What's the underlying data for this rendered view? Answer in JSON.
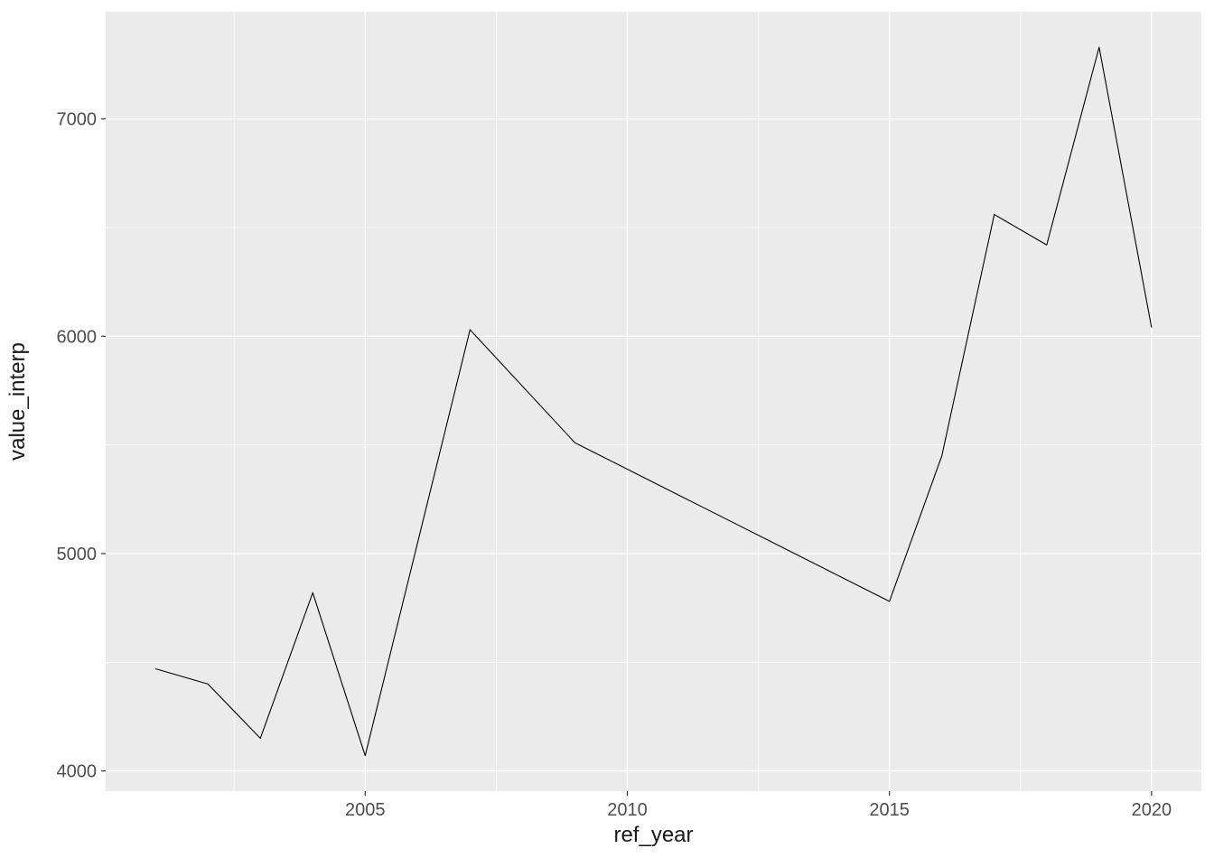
{
  "chart_data": {
    "type": "line",
    "title": "",
    "xlabel": "ref_year",
    "ylabel": "value_interp",
    "x": [
      2001,
      2002,
      2003,
      2004,
      2005,
      2007,
      2009,
      2015,
      2016,
      2017,
      2018,
      2019,
      2020
    ],
    "y": [
      4470,
      4400,
      4150,
      4820,
      4070,
      6030,
      5510,
      4780,
      5450,
      6560,
      6420,
      7330,
      6040
    ],
    "xlim": [
      2000.05,
      2020.95
    ],
    "ylim": [
      3907,
      7493
    ],
    "x_ticks": [
      2005,
      2010,
      2015,
      2020
    ],
    "x_tick_labels": [
      "2005",
      "2010",
      "2015",
      "2020"
    ],
    "y_ticks": [
      4000,
      5000,
      6000,
      7000
    ],
    "y_tick_labels": [
      "4000",
      "5000",
      "6000",
      "7000"
    ],
    "x_minor_ticks": [
      2002.5,
      2007.5,
      2012.5,
      2017.5
    ],
    "y_minor_ticks": [
      4500,
      5500,
      6500
    ],
    "grid": true,
    "legend": "none",
    "style": {
      "figure_background": "#FFFFFF",
      "panel_background": "#EBEBEB",
      "grid_color": "#FFFFFF",
      "line_color": "#000000",
      "tick_label_color": "#4D4D4D",
      "axis_title_color": "#1A1A1A",
      "tick_mark_color": "#333333"
    }
  }
}
